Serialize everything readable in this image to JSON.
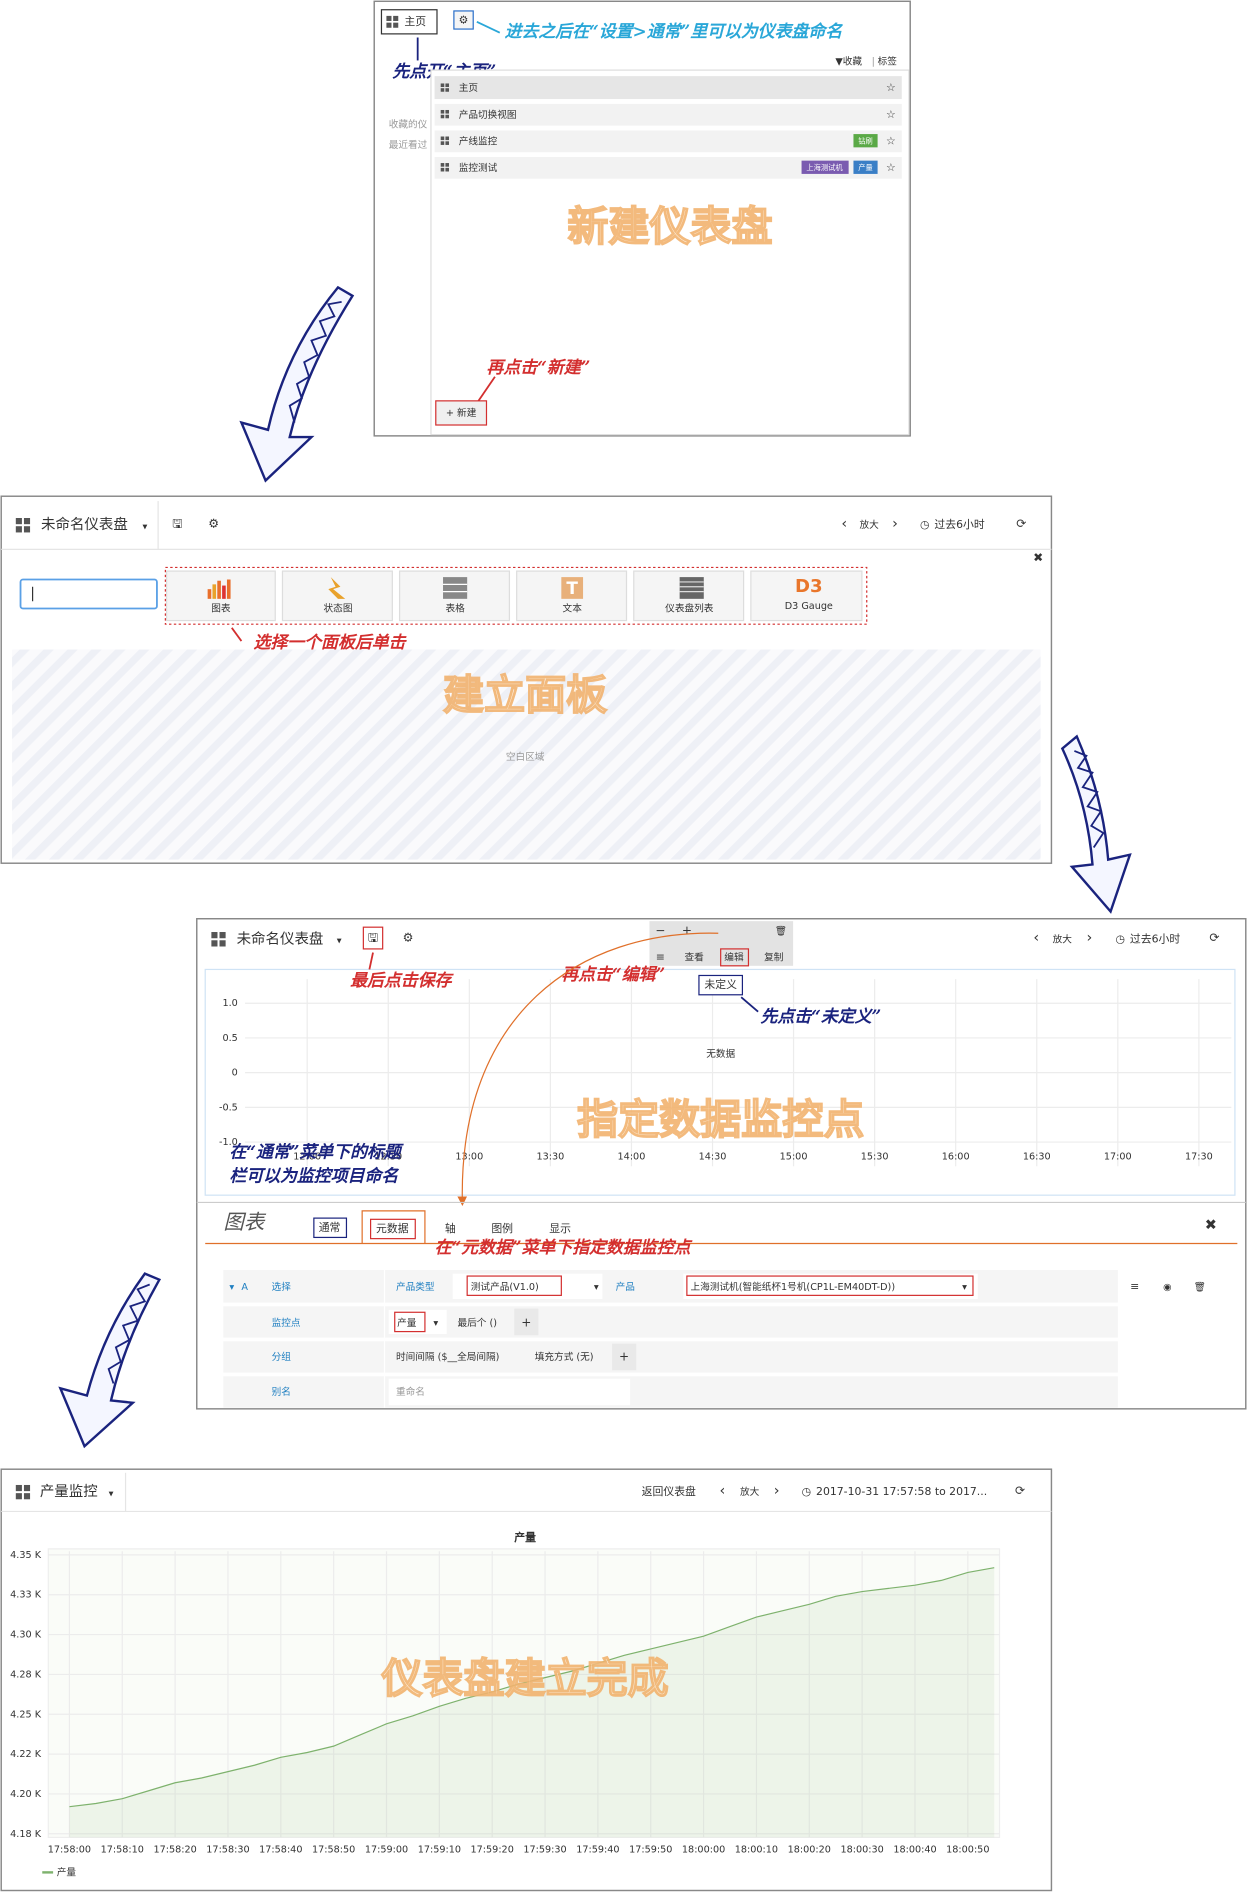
{
  "step1": {
    "home_button": "主页",
    "annotation_settings": "进去之后在“设置>通常”里可以为仪表盘命名",
    "annotation_home": "先点开“主页”",
    "toolbar_starred": "▼收藏",
    "toolbar_sep": "|",
    "toolbar_tags": "标签",
    "sidebar": [
      "收藏的仪",
      "最近看过"
    ],
    "items": [
      {
        "name": "主页"
      },
      {
        "name": "产品切换视图"
      },
      {
        "name": "产线监控",
        "tags": [
          "钻刷"
        ]
      },
      {
        "name": "监控测试",
        "tags": [
          "上海测试机",
          "产量"
        ]
      }
    ],
    "watermark": "新建仪表盘",
    "annotation_new": "再点击“新建”",
    "new_button": "+ 新建"
  },
  "step2": {
    "title": "未命名仪表盘",
    "zoom": "放大",
    "time": "过去6小时",
    "panels": [
      "图表",
      "状态图",
      "表格",
      "文本",
      "仪表盘列表",
      "D3 Gauge"
    ],
    "annotation": "选择一个面板后单击",
    "watermark": "建立面板",
    "empty": "空白区域"
  },
  "step3": {
    "title": "未命名仪表盘",
    "zoom": "放大",
    "time": "过去6小时",
    "menu": [
      "查看",
      "编辑",
      "复制"
    ],
    "undefined": "未定义",
    "annotation_save": "最后点击保存",
    "annotation_edit": "再点击“编辑”",
    "annotation_undefined": "先点击“未定义”",
    "annotation_title": [
      "在“通常”菜单下的标题",
      "栏可以为监控项目命名"
    ],
    "chart": {
      "type": "line",
      "no_data": "无数据",
      "xlim": [
        "11:37",
        "17:42"
      ],
      "xticks": [
        "12:00",
        "12:30",
        "13:00",
        "13:30",
        "14:00",
        "14:30",
        "15:00",
        "15:30",
        "16:00",
        "16:30",
        "17:00",
        "17:30"
      ],
      "ylim": [
        -1,
        1
      ],
      "yticks": [
        {
          "value": 1,
          "label": "1.0"
        },
        0.5,
        0,
        -0.5,
        {
          "value": -1,
          "label": "-1.0"
        }
      ],
      "grid": true
    },
    "watermark": "指定数据监控点",
    "editor": {
      "heading": "图表",
      "tabs": [
        "通常",
        "元数据",
        "轴",
        "图例",
        "显示"
      ],
      "annotation": "在“元数据”菜单下指定数据监控点",
      "query": "A",
      "row1": [
        "选择",
        "产品类型",
        "测试产品(V1.0)",
        "产品",
        "上海测试机(智能纸杯1号机(CP1L-EM40DT-D))"
      ],
      "row2": [
        "监控点",
        "产量",
        "最后个 ()"
      ],
      "row3": [
        "分组",
        "时间间隔 ($__全局间隔)",
        "填充方式 (无)"
      ],
      "row4": [
        "别名",
        "重命名"
      ]
    }
  },
  "step4": {
    "title": "产量监控",
    "back": "返回仪表盘",
    "zoom": "放大",
    "time": "2017-10-31 17:57:58 to 2017...",
    "watermark": "仪表盘建立完成",
    "chart": {
      "type": "line",
      "title": "产量",
      "x": [
        "17:58:00",
        "17:58:05",
        "17:58:10",
        "17:58:15",
        "17:58:20",
        "17:58:25",
        "17:58:30",
        "17:58:35",
        "17:58:40",
        "17:58:45",
        "17:58:50",
        "17:58:55",
        "17:59:00",
        "17:59:05",
        "17:59:10",
        "17:59:15",
        "17:59:20",
        "17:59:25",
        "17:59:30",
        "17:59:35",
        "17:59:40",
        "17:59:45",
        "17:59:50",
        "17:59:55",
        "18:00:00",
        "18:00:05",
        "18:00:10",
        "18:00:15",
        "18:00:20",
        "18:00:25",
        "18:00:30",
        "18:00:35",
        "18:00:40",
        "18:00:45",
        "18:00:50",
        "18:00:55"
      ],
      "xlim": [
        "17:57:56",
        "18:00:56"
      ],
      "xticks": [
        "17:58:00",
        "17:58:10",
        "17:58:20",
        "17:58:30",
        "17:58:40",
        "17:58:50",
        "17:59:00",
        "17:59:10",
        "17:59:20",
        "17:59:30",
        "17:59:40",
        "17:59:50",
        "18:00:00",
        "18:00:10",
        "18:00:20",
        "18:00:30",
        "18:00:40",
        "18:00:50"
      ],
      "ylim": [
        4175,
        4350
      ],
      "yticks": [
        {
          "value": 4175,
          "label": "4.18 K"
        },
        {
          "value": 4200,
          "label": "4.20 K"
        },
        {
          "value": 4225,
          "label": "4.22 K"
        },
        {
          "value": 4250,
          "label": "4.25 K"
        },
        {
          "value": 4275,
          "label": "4.28 K"
        },
        {
          "value": 4300,
          "label": "4.30 K"
        },
        {
          "value": 4325,
          "label": "4.33 K"
        },
        {
          "value": 4350,
          "label": "4.35 K"
        }
      ],
      "grid": true,
      "series": [
        {
          "name": "产量",
          "color": "#7eb26d",
          "values": [
            4192,
            4194,
            4197,
            4202,
            4207,
            4210,
            4214,
            4218,
            4223,
            4226,
            4230,
            4237,
            4244,
            4249,
            4255,
            4260,
            4264,
            4269,
            4273,
            4277,
            4282,
            4287,
            4291,
            4295,
            4299,
            4305,
            4311,
            4315,
            4319,
            4324,
            4327,
            4329,
            4331,
            4334,
            4339,
            4342
          ]
        }
      ]
    }
  }
}
